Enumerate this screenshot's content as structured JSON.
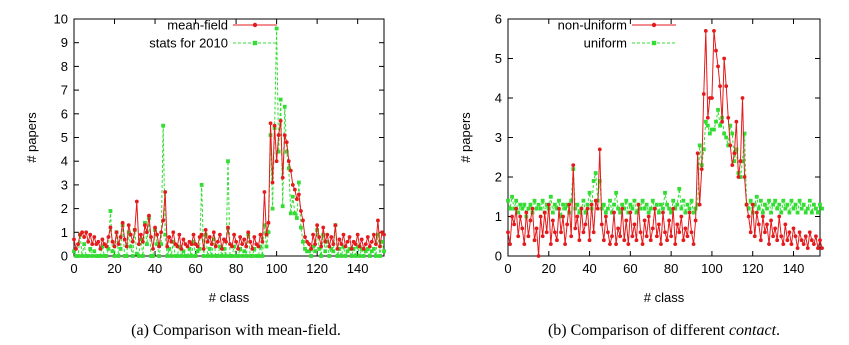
{
  "colors": {
    "red": "#e41a1c",
    "green": "#33dd33",
    "axis": "#000000"
  },
  "chart_data": [
    {
      "type": "line",
      "xlabel": "# class",
      "ylabel": "# papers",
      "xlim": [
        0,
        153
      ],
      "ylim": [
        0,
        10
      ],
      "xticks": [
        0,
        20,
        40,
        60,
        80,
        100,
        120,
        140
      ],
      "yticks": [
        0,
        1,
        2,
        3,
        4,
        5,
        6,
        7,
        8,
        9,
        10
      ],
      "grid": false,
      "legend_position": "top-left",
      "caption": "(a) Comparison with mean-field.",
      "series": [
        {
          "name": "mean-field",
          "color": "#e41a1c",
          "marker": "circle",
          "dashed": false,
          "values": [
            0.7,
            0.3,
            0.5,
            0.9,
            1.0,
            0.8,
            1.0,
            0.6,
            0.9,
            0.5,
            0.8,
            0.5,
            0.6,
            0.3,
            0.7,
            0.5,
            0.4,
            0.8,
            1.2,
            0.6,
            0.4,
            1.0,
            0.5,
            0.8,
            1.4,
            0.7,
            0.4,
            1.3,
            0.9,
            0.6,
            1.1,
            2.3,
            0.5,
            0.9,
            0.6,
            1.3,
            1.0,
            1.7,
            0.8,
            0.3,
            1.2,
            0.9,
            0.4,
            1.0,
            1.5,
            2.7,
            0.4,
            0.8,
            0.6,
            1.0,
            0.5,
            0.4,
            0.9,
            0.3,
            0.7,
            0.5,
            0.4,
            0.6,
            0.5,
            0.9,
            0.5,
            0.4,
            0.8,
            0.9,
            0.3,
            1.1,
            0.6,
            0.8,
            0.5,
            1.0,
            0.4,
            0.6,
            0.9,
            0.3,
            0.7,
            0.6,
            1.2,
            0.5,
            0.4,
            0.9,
            0.6,
            0.3,
            0.8,
            0.5,
            0.7,
            0.4,
            1.0,
            0.6,
            0.3,
            0.8,
            0.5,
            0.4,
            0.9,
            0.6,
            2.7,
            0.9,
            1.4,
            5.6,
            3.1,
            5.5,
            4.0,
            5.1,
            5.7,
            3.3,
            5.1,
            4.8,
            4.0,
            3.6,
            3.0,
            2.8,
            2.4,
            2.6,
            1.9,
            1.5,
            0.8,
            0.6,
            0.5,
            0.3,
            0.9,
            0.5,
            1.3,
            0.8,
            0.4,
            1.2,
            0.6,
            0.9,
            0.4,
            0.8,
            0.5,
            1.3,
            0.3,
            0.7,
            0.5,
            0.9,
            0.4,
            0.6,
            0.8,
            0.3,
            0.6,
            0.5,
            0.9,
            0.4,
            0.7,
            0.3,
            0.5,
            0.8,
            0.4,
            0.6,
            0.9,
            0.5,
            1.5,
            0.4,
            1.0,
            0.9
          ]
        },
        {
          "name": "stats for 2010",
          "color": "#33dd33",
          "marker": "square",
          "dashed": true,
          "values": [
            0.2,
            0.0,
            0.0,
            0.9,
            0.0,
            0.5,
            0.0,
            0.0,
            0.3,
            0.0,
            0.2,
            0.0,
            0.0,
            0.0,
            0.4,
            0.0,
            0.0,
            0.3,
            1.9,
            0.2,
            0.0,
            1.0,
            0.0,
            0.3,
            1.3,
            0.0,
            0.0,
            1.0,
            0.4,
            0.0,
            1.1,
            0.1,
            0.0,
            0.7,
            0.0,
            1.4,
            0.5,
            1.6,
            0.0,
            0.0,
            1.1,
            0.5,
            0.0,
            0.5,
            5.5,
            0.9,
            0.0,
            0.3,
            0.0,
            0.6,
            0.0,
            0.0,
            0.4,
            0.0,
            0.2,
            0.0,
            0.0,
            0.3,
            0.0,
            0.6,
            0.0,
            0.2,
            0.3,
            3.0,
            0.0,
            0.9,
            0.0,
            0.3,
            0.0,
            0.7,
            0.0,
            0.0,
            0.4,
            0.0,
            0.3,
            0.0,
            4.0,
            0.0,
            0.0,
            0.4,
            0.0,
            0.0,
            0.3,
            0.0,
            0.2,
            0.0,
            0.9,
            0.0,
            0.0,
            0.3,
            0.0,
            0.0,
            0.4,
            0.0,
            1.3,
            0.4,
            1.0,
            5.1,
            2.0,
            5.4,
            9.6,
            4.4,
            6.6,
            2.1,
            6.3,
            4.4,
            3.7,
            1.8,
            2.5,
            1.8,
            1.6,
            3.1,
            1.2,
            0.6,
            0.3,
            0.2,
            0.2,
            0.0,
            0.4,
            0.2,
            1.1,
            0.3,
            0.0,
            0.9,
            0.2,
            0.6,
            0.0,
            0.3,
            0.2,
            1.3,
            0.0,
            0.3,
            0.0,
            0.4,
            0.0,
            0.2,
            0.3,
            0.0,
            0.3,
            0.0,
            0.4,
            0.0,
            0.3,
            0.0,
            0.2,
            0.3,
            0.0,
            0.2,
            0.3,
            0.0,
            0.9,
            0.0,
            0.6,
            0.2
          ]
        }
      ]
    },
    {
      "type": "line",
      "xlabel": "# class",
      "ylabel": "# papers",
      "xlim": [
        0,
        153
      ],
      "ylim": [
        0,
        6
      ],
      "xticks": [
        0,
        20,
        40,
        60,
        80,
        100,
        120,
        140
      ],
      "yticks": [
        0,
        1,
        2,
        3,
        4,
        5,
        6
      ],
      "grid": false,
      "legend_position": "top-left",
      "caption_parts": [
        "(b) Comparison of different ",
        "contact",
        "."
      ],
      "series": [
        {
          "name": "non-uniform",
          "color": "#e41a1c",
          "marker": "circle",
          "dashed": false,
          "values": [
            0.6,
            0.3,
            1.0,
            0.8,
            1.2,
            0.5,
            1.0,
            0.7,
            0.3,
            1.1,
            0.5,
            0.9,
            1.2,
            0.4,
            0.7,
            0.0,
            1.0,
            0.5,
            1.1,
            0.6,
            1.3,
            0.3,
            0.9,
            0.6,
            0.4,
            1.2,
            0.6,
            1.0,
            0.3,
            0.8,
            1.3,
            0.5,
            2.3,
            0.7,
            1.0,
            0.4,
            1.2,
            0.6,
            0.8,
            1.2,
            0.4,
            1.3,
            0.6,
            1.4,
            1.2,
            2.7,
            0.8,
            0.4,
            1.0,
            0.6,
            0.3,
            0.5,
            1.1,
            0.3,
            0.7,
            0.5,
            1.2,
            0.4,
            0.9,
            0.3,
            1.1,
            0.5,
            0.8,
            0.4,
            1.3,
            0.6,
            0.3,
            0.9,
            0.5,
            1.0,
            0.4,
            0.7,
            1.2,
            0.5,
            0.8,
            0.3,
            1.1,
            0.6,
            0.4,
            0.9,
            0.5,
            1.2,
            0.3,
            0.8,
            0.6,
            1.0,
            0.4,
            0.7,
            0.5,
            1.1,
            0.6,
            0.3,
            0.9,
            2.6,
            1.3,
            2.2,
            4.1,
            5.7,
            3.5,
            4.0,
            4.0,
            5.7,
            5.2,
            4.8,
            4.3,
            3.4,
            5.0,
            4.3,
            3.5,
            2.8,
            2.3,
            2.6,
            3.4,
            2.0,
            2.4,
            4.0,
            2.0,
            1.3,
            1.0,
            0.6,
            1.3,
            0.5,
            1.1,
            0.8,
            0.4,
            1.0,
            0.6,
            0.8,
            0.3,
            0.9,
            0.5,
            0.7,
            0.4,
            1.0,
            0.5,
            0.3,
            0.8,
            0.4,
            0.6,
            0.3,
            0.7,
            0.5,
            0.2,
            0.6,
            0.4,
            0.3,
            0.5,
            0.2,
            0.6,
            0.4,
            0.3,
            0.5,
            0.2,
            0.4,
            0.2
          ]
        },
        {
          "name": "uniform",
          "color": "#33dd33",
          "marker": "square",
          "dashed": true,
          "values": [
            1.4,
            1.2,
            1.5,
            1.2,
            1.4,
            1.1,
            1.3,
            1.2,
            1.3,
            1.0,
            1.2,
            1.3,
            1.1,
            1.4,
            1.2,
            1.3,
            1.2,
            1.4,
            1.1,
            1.3,
            1.2,
            1.5,
            1.1,
            1.3,
            1.2,
            1.4,
            1.0,
            1.3,
            1.2,
            1.3,
            1.1,
            1.4,
            2.2,
            1.2,
            1.3,
            1.1,
            1.2,
            1.4,
            1.1,
            1.3,
            1.6,
            1.2,
            1.9,
            2.1,
            1.4,
            1.9,
            1.2,
            1.3,
            1.1,
            1.2,
            1.4,
            1.1,
            1.3,
            1.6,
            1.2,
            1.1,
            1.3,
            1.2,
            1.4,
            1.1,
            1.3,
            1.2,
            1.4,
            1.1,
            1.3,
            1.2,
            1.4,
            1.2,
            1.3,
            1.1,
            1.2,
            1.4,
            1.2,
            1.3,
            1.1,
            1.3,
            1.2,
            1.6,
            1.3,
            1.2,
            1.1,
            1.4,
            1.2,
            1.3,
            1.7,
            1.2,
            1.4,
            1.1,
            1.3,
            1.2,
            1.4,
            1.1,
            1.2,
            1.3,
            2.8,
            2.3,
            2.7,
            3.4,
            3.3,
            3.1,
            3.2,
            3.2,
            3.4,
            3.7,
            3.3,
            3.5,
            3.1,
            3.0,
            2.8,
            3.3,
            3.1,
            2.4,
            2.7,
            2.1,
            2.0,
            2.4,
            3.1,
            1.3,
            1.2,
            1.4,
            1.1,
            1.3,
            1.5,
            1.2,
            1.4,
            1.1,
            1.3,
            1.2,
            1.4,
            1.1,
            1.3,
            1.4,
            1.2,
            1.3,
            1.1,
            1.4,
            1.2,
            1.3,
            1.1,
            1.4,
            1.2,
            1.3,
            1.1,
            1.4,
            1.2,
            1.3,
            1.1,
            1.2,
            1.4,
            1.1,
            1.3,
            1.2,
            1.1,
            1.3,
            1.2
          ]
        }
      ]
    }
  ]
}
